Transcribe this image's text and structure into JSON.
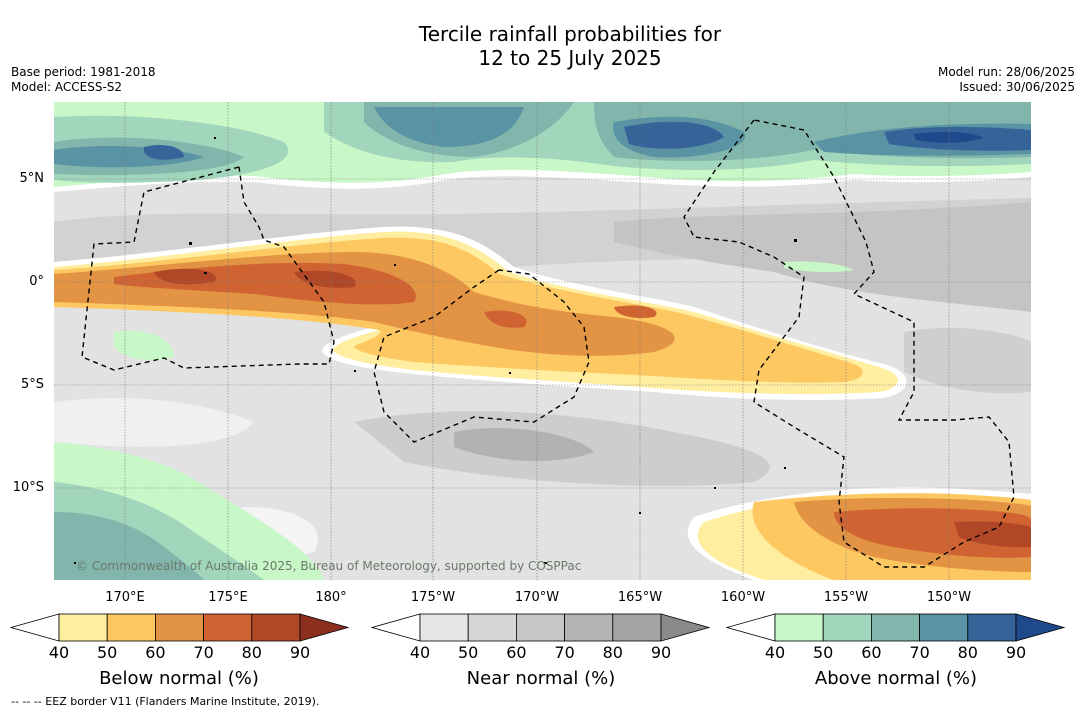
{
  "title_line1": "Tercile rainfall probabilities for",
  "title_line2": "12 to 25 July 2025",
  "base_period": "Base period: 1981-2018",
  "model": "Model: ACCESS-S2",
  "model_run": "Model run: 28/06/2025",
  "issued": "Issued: 30/06/2025",
  "copyright": "© Commonwealth of Australia 2025, Bureau of Meteorology, supported by COSPPac",
  "lat_labels": [
    "5°N",
    "0°",
    "5°S",
    "10°S"
  ],
  "lon_labels": [
    "170°E",
    "175°E",
    "180°",
    "175°W",
    "170°W",
    "165°W",
    "160°W",
    "155°W",
    "150°W"
  ],
  "colorbars": [
    {
      "label": "Below normal (%)",
      "ticks": [
        "40",
        "50",
        "60",
        "70",
        "80",
        "90"
      ],
      "colors": [
        "#ffeea0",
        "#fdc861",
        "#e29444",
        "#cf6432",
        "#b04828",
        "#8c2f1e"
      ]
    },
    {
      "label": "Near normal (%)",
      "ticks": [
        "40",
        "50",
        "60",
        "70",
        "80",
        "90"
      ],
      "colors": [
        "#e6e6e6",
        "#d6d6d6",
        "#c6c6c6",
        "#b4b4b4",
        "#a4a4a4",
        "#8a8a8a"
      ]
    },
    {
      "label": "Above normal (%)",
      "ticks": [
        "40",
        "50",
        "60",
        "70",
        "80",
        "90"
      ],
      "colors": [
        "#c8f7c8",
        "#a2d6bc",
        "#82b6ac",
        "#5a93a4",
        "#366498",
        "#1e4a8c"
      ]
    }
  ],
  "footnote": "--  --  -- EEZ border V11 (Flanders Marine Institute, 2019)."
}
